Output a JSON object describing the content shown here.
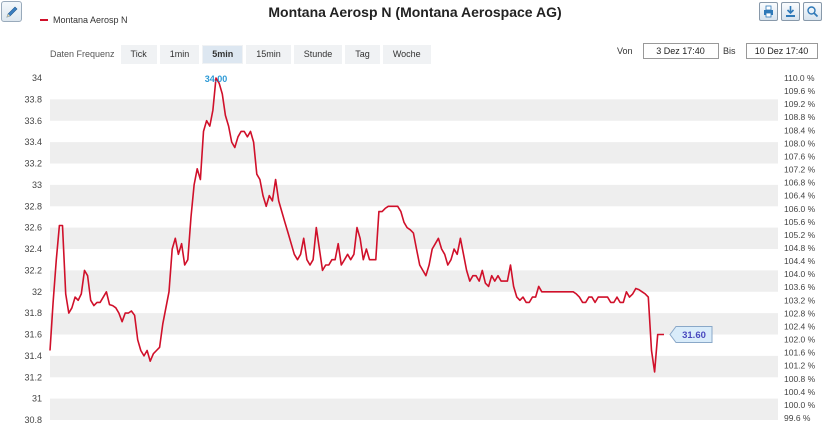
{
  "header": {
    "title": "Montana Aerosp N (Montana Aerospace AG)",
    "legend_label": "Montana Aerosp N",
    "legend_color": "#d0102a",
    "edit_icon": "pencil-icon",
    "tools": [
      {
        "name": "print-button",
        "icon": "print-icon"
      },
      {
        "name": "download-button",
        "icon": "download-icon"
      },
      {
        "name": "zoom-reset-button",
        "icon": "magnifier-icon"
      }
    ]
  },
  "frequency": {
    "label": "Daten Frequenz",
    "options": [
      "Tick",
      "1min",
      "5min",
      "15min",
      "Stunde",
      "Tag",
      "Woche"
    ],
    "selected": "5min"
  },
  "range": {
    "from_label": "Von",
    "from_value": "3 Dez 17:40",
    "to_label": "Bis",
    "to_value": "10 Dez 17:40"
  },
  "chart_data": {
    "type": "line",
    "series": [
      {
        "name": "Montana Aerosp N",
        "color": "#d0102a",
        "values": [
          31.45,
          31.9,
          32.3,
          32.62,
          32.62,
          31.98,
          31.8,
          31.85,
          31.95,
          31.92,
          31.98,
          32.2,
          32.15,
          31.92,
          31.87,
          31.9,
          31.9,
          31.95,
          32.0,
          31.88,
          31.87,
          31.85,
          31.8,
          31.72,
          31.8,
          31.8,
          31.82,
          31.78,
          31.55,
          31.45,
          31.4,
          31.45,
          31.35,
          31.42,
          31.45,
          31.48,
          31.7,
          31.85,
          32.0,
          32.4,
          32.5,
          32.35,
          32.45,
          32.25,
          32.3,
          32.7,
          33.0,
          33.15,
          33.05,
          33.5,
          33.6,
          33.55,
          33.7,
          34.0,
          33.95,
          33.85,
          33.65,
          33.55,
          33.4,
          33.35,
          33.45,
          33.5,
          33.5,
          33.45,
          33.5,
          33.4,
          33.1,
          33.05,
          32.9,
          32.8,
          32.9,
          32.85,
          33.05,
          32.85,
          32.75,
          32.65,
          32.55,
          32.45,
          32.35,
          32.3,
          32.35,
          32.5,
          32.3,
          32.25,
          32.3,
          32.6,
          32.4,
          32.2,
          32.25,
          32.25,
          32.3,
          32.3,
          32.45,
          32.25,
          32.3,
          32.35,
          32.3,
          32.35,
          32.6,
          32.5,
          32.3,
          32.4,
          32.3,
          32.3,
          32.3,
          32.75,
          32.75,
          32.78,
          32.8,
          32.8,
          32.8,
          32.8,
          32.75,
          32.65,
          32.6,
          32.58,
          32.55,
          32.4,
          32.25,
          32.2,
          32.15,
          32.25,
          32.4,
          32.45,
          32.5,
          32.4,
          32.35,
          32.25,
          32.3,
          32.4,
          32.35,
          32.5,
          32.35,
          32.2,
          32.1,
          32.15,
          32.15,
          32.1,
          32.2,
          32.08,
          32.05,
          32.15,
          32.1,
          32.15,
          32.1,
          32.1,
          32.1,
          32.25,
          32.05,
          31.95,
          31.92,
          31.95,
          31.9,
          31.9,
          31.95,
          31.95,
          32.05,
          32.0,
          32.0,
          32.0,
          32.0,
          32.0,
          32.0,
          32.0,
          32.0,
          32.0,
          32.0,
          32.0,
          31.98,
          31.95,
          31.9,
          31.9,
          31.95,
          31.95,
          31.9,
          31.95,
          31.95,
          31.95,
          31.95,
          31.9,
          31.9,
          31.95,
          31.9,
          31.9,
          32.0,
          31.95,
          31.98,
          32.03,
          32.02,
          32.0,
          31.98,
          31.95,
          31.45,
          31.25,
          31.6,
          31.6,
          31.6
        ]
      }
    ],
    "ylim": [
      30.8,
      34.0
    ],
    "y_ticks": [
      30.8,
      31,
      31.2,
      31.4,
      31.6,
      31.8,
      32,
      32.2,
      32.4,
      32.6,
      32.8,
      33,
      33.2,
      33.4,
      33.6,
      33.8,
      34
    ],
    "y_tick_labels": [
      "30.8",
      "31",
      "31.2",
      "31.4",
      "31.6",
      "31.8",
      "32",
      "32.2",
      "32.4",
      "32.6",
      "32.8",
      "33",
      "33.2",
      "33.4",
      "33.6",
      "33.8",
      "34"
    ],
    "y2_labels": [
      "99.6 %",
      "100.0 %",
      "100.4 %",
      "100.8 %",
      "101.2 %",
      "101.6 %",
      "102.0 %",
      "102.4 %",
      "102.8 %",
      "103.2 %",
      "103.6 %",
      "104.0 %",
      "104.4 %",
      "104.8 %",
      "105.2 %",
      "105.6 %",
      "106.0 %",
      "106.4 %",
      "106.8 %",
      "107.2 %",
      "107.6 %",
      "108.0 %",
      "108.4 %",
      "108.8 %",
      "109.2 %",
      "109.6 %",
      "110.0 %"
    ],
    "max_annotation": "34.00",
    "last_annotation": "31.60",
    "max_color": "#2e9ad6",
    "last_color": "#4a4abf",
    "band_color": "#eeeeee",
    "grid": true
  }
}
